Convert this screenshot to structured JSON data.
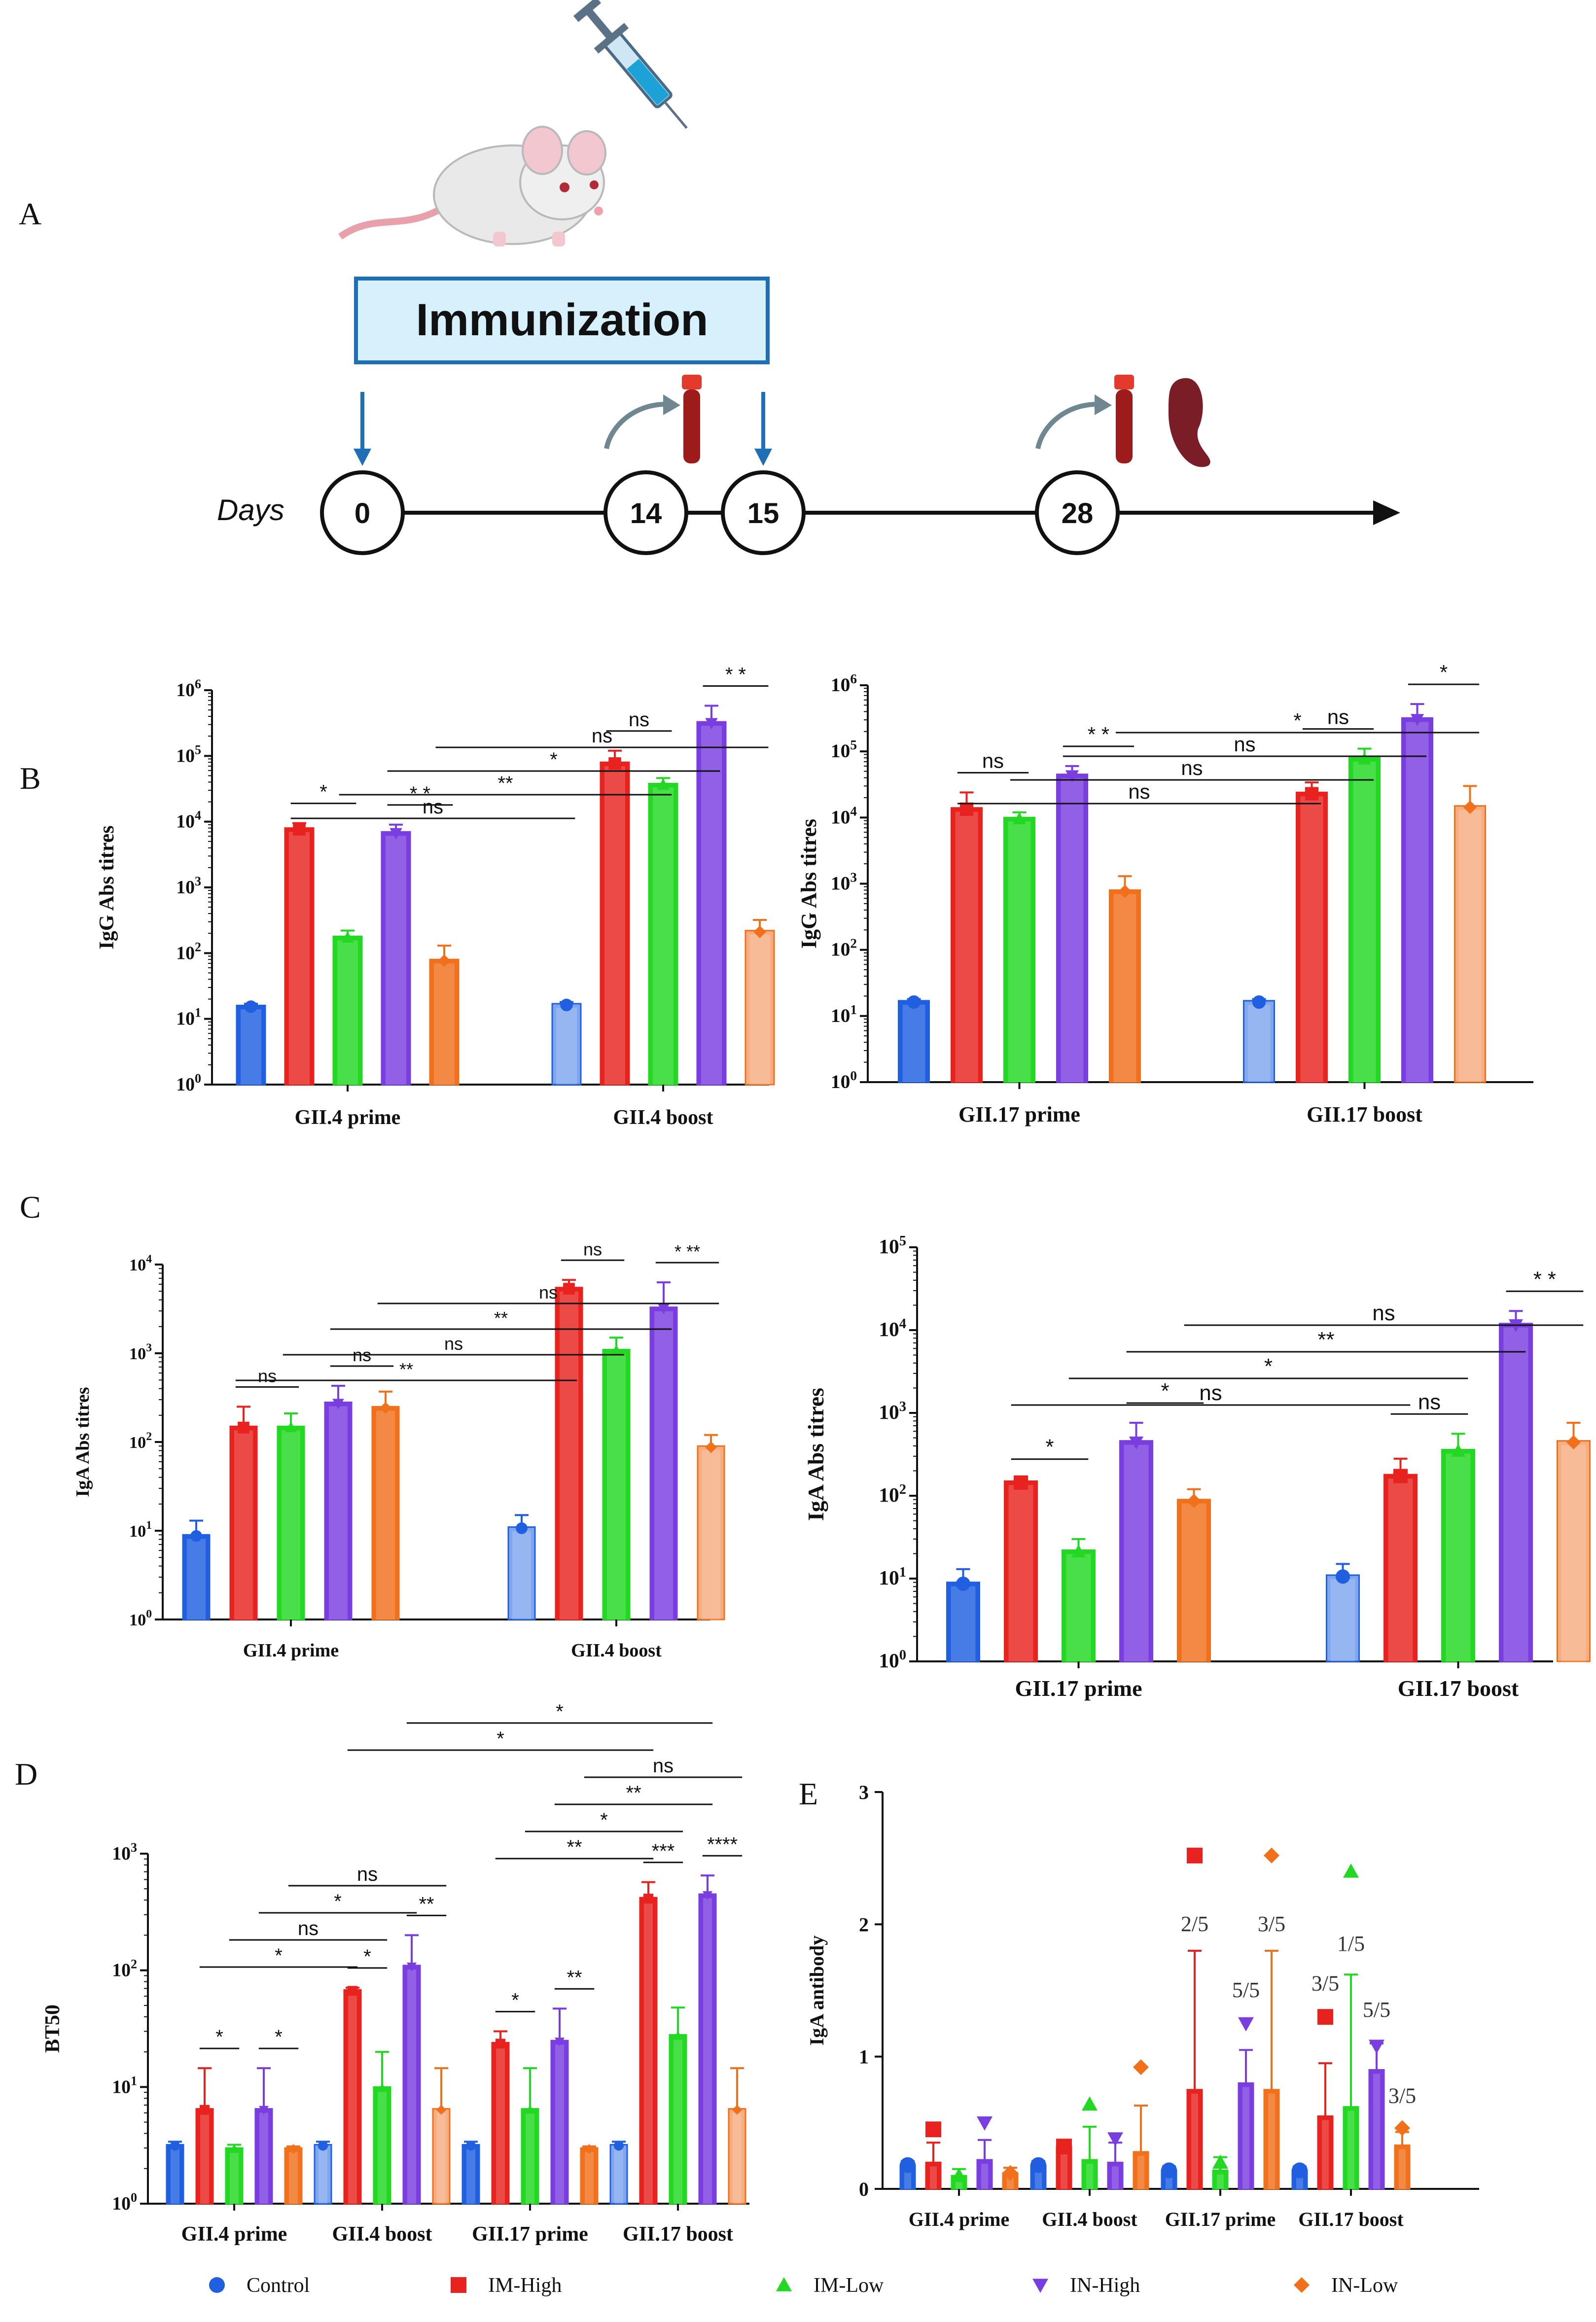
{
  "panel_labels": {
    "a": "A",
    "b": "B",
    "c": "C",
    "d": "D",
    "e": "E"
  },
  "timeline": {
    "box_label": "Immunization",
    "days_label": "Days",
    "days": [
      "0",
      "14",
      "15",
      "28"
    ]
  },
  "colors": {
    "Control": "#1f5fe0",
    "IM-High": "#e8231f",
    "IM-Low": "#22d822",
    "IN-High": "#7a3ee0",
    "IN-Low": "#f0701c",
    "Control_light": "#7fa6ef",
    "IM-High_light": "#f47f7b",
    "IM-Low_light": "#8ae98a",
    "IN-High_light": "#b59af0",
    "IN-Low_light": "#f6ad80"
  },
  "legend": {
    "items": [
      {
        "label": "Control",
        "color": "#1f5fe0",
        "marker": "circle"
      },
      {
        "label": "IM-High",
        "color": "#e8231f",
        "marker": "square"
      },
      {
        "label": "IM-Low",
        "color": "#22d822",
        "marker": "triangle-up"
      },
      {
        "label": "IN-High",
        "color": "#7a3ee0",
        "marker": "triangle-down"
      },
      {
        "label": "IN-Low",
        "color": "#f0701c",
        "marker": "diamond"
      }
    ]
  },
  "chart_data": [
    {
      "id": "B-left",
      "type": "bar",
      "scale": "log",
      "ylabel": "IgG Abs titres",
      "ylim_exp": [
        0,
        6
      ],
      "yticks": [
        {
          "b": "10",
          "e": "0"
        },
        {
          "b": "10",
          "e": "1"
        },
        {
          "b": "10",
          "e": "2"
        },
        {
          "b": "10",
          "e": "3"
        },
        {
          "b": "10",
          "e": "4"
        },
        {
          "b": "10",
          "e": "5"
        },
        {
          "b": "10",
          "e": "6"
        }
      ],
      "groups": [
        {
          "label": "GII.4 prime",
          "values": [
            16,
            8000,
            180,
            7000,
            80
          ],
          "errors": [
            1,
            1500,
            40,
            2000,
            50
          ]
        },
        {
          "label": "GII.4 boost",
          "values": [
            17,
            80000,
            38000,
            330000,
            220
          ],
          "errors": [
            1,
            40000,
            8000,
            250000,
            100
          ]
        }
      ],
      "brackets": [
        {
          "from": [
            0,
            1
          ],
          "to": [
            0,
            2
          ],
          "text": "*"
        },
        {
          "from": [
            0,
            3
          ],
          "to": [
            0,
            4
          ],
          "text": "* *"
        },
        {
          "from": [
            0,
            1
          ],
          "to": [
            1,
            0
          ],
          "text": "ns"
        },
        {
          "from": [
            1,
            1
          ],
          "to": [
            1,
            2
          ],
          "text": "ns"
        },
        {
          "from": [
            1,
            3
          ],
          "to": [
            1,
            4
          ],
          "text": "* *"
        },
        {
          "from": [
            0,
            2
          ],
          "to": [
            1,
            2
          ],
          "text": "**"
        },
        {
          "from": [
            0,
            3
          ],
          "to": [
            1,
            3
          ],
          "text": "*"
        },
        {
          "from": [
            0,
            4
          ],
          "to": [
            1,
            4
          ],
          "text": "ns"
        }
      ]
    },
    {
      "id": "B-right",
      "type": "bar",
      "scale": "log",
      "ylabel": "IgG Abs titres",
      "ylim_exp": [
        0,
        6
      ],
      "yticks": [
        {
          "b": "10",
          "e": "0"
        },
        {
          "b": "10",
          "e": "1"
        },
        {
          "b": "10",
          "e": "2"
        },
        {
          "b": "10",
          "e": "3"
        },
        {
          "b": "10",
          "e": "4"
        },
        {
          "b": "10",
          "e": "5"
        },
        {
          "b": "10",
          "e": "6"
        }
      ],
      "groups": [
        {
          "label": "GII.17 prime",
          "values": [
            17,
            14000,
            10000,
            45000,
            800
          ],
          "errors": [
            1,
            10000,
            2000,
            15000,
            500
          ]
        },
        {
          "label": "GII.17 boost",
          "values": [
            17,
            24000,
            80000,
            320000,
            15000
          ],
          "errors": [
            1,
            10000,
            30000,
            200000,
            15000
          ]
        }
      ],
      "brackets": [
        {
          "from": [
            0,
            1
          ],
          "to": [
            0,
            2
          ],
          "text": "ns"
        },
        {
          "from": [
            0,
            3
          ],
          "to": [
            0,
            4
          ],
          "text": "* *"
        },
        {
          "from": [
            1,
            1
          ],
          "to": [
            1,
            2
          ],
          "text": "ns"
        },
        {
          "from": [
            1,
            3
          ],
          "to": [
            1,
            4
          ],
          "text": "*"
        },
        {
          "from": [
            0,
            1
          ],
          "to": [
            1,
            1
          ],
          "text": "ns"
        },
        {
          "from": [
            0,
            2
          ],
          "to": [
            1,
            2
          ],
          "text": "ns"
        },
        {
          "from": [
            0,
            3
          ],
          "to": [
            1,
            3
          ],
          "text": "ns"
        },
        {
          "from": [
            0,
            4
          ],
          "to": [
            1,
            4
          ],
          "text": "*"
        }
      ]
    },
    {
      "id": "C-left",
      "type": "bar",
      "scale": "log",
      "ylabel": "IgA Abs titres",
      "ylim_exp": [
        0,
        4
      ],
      "yticks": [
        {
          "b": "10",
          "e": "0"
        },
        {
          "b": "10",
          "e": "1"
        },
        {
          "b": "10",
          "e": "2"
        },
        {
          "b": "10",
          "e": "3"
        },
        {
          "b": "10",
          "e": "4"
        }
      ],
      "groups": [
        {
          "label": "GII.4 prime",
          "values": [
            9,
            150,
            150,
            280,
            250
          ],
          "errors": [
            4,
            100,
            60,
            150,
            120
          ]
        },
        {
          "label": "GII.4 boost",
          "values": [
            11,
            5500,
            1100,
            3300,
            90
          ],
          "errors": [
            4,
            1200,
            400,
            3000,
            30
          ]
        }
      ],
      "brackets": [
        {
          "from": [
            0,
            1
          ],
          "to": [
            0,
            2
          ],
          "text": "ns"
        },
        {
          "from": [
            0,
            3
          ],
          "to": [
            0,
            4
          ],
          "text": "ns"
        },
        {
          "from": [
            1,
            1
          ],
          "to": [
            1,
            2
          ],
          "text": "ns"
        },
        {
          "from": [
            1,
            3
          ],
          "to": [
            1,
            4
          ],
          "text": "* **"
        },
        {
          "from": [
            0,
            1
          ],
          "to": [
            1,
            1
          ],
          "text": "**"
        },
        {
          "from": [
            0,
            2
          ],
          "to": [
            1,
            2
          ],
          "text": "ns"
        },
        {
          "from": [
            0,
            3
          ],
          "to": [
            1,
            3
          ],
          "text": "**"
        },
        {
          "from": [
            0,
            4
          ],
          "to": [
            1,
            4
          ],
          "text": "ns"
        }
      ]
    },
    {
      "id": "C-right",
      "type": "bar",
      "scale": "log",
      "ylabel": "IgA Abs titres",
      "ylim_exp": [
        0,
        5
      ],
      "yticks": [
        {
          "b": "10",
          "e": "0"
        },
        {
          "b": "10",
          "e": "1"
        },
        {
          "b": "10",
          "e": "2"
        },
        {
          "b": "10",
          "e": "3"
        },
        {
          "b": "10",
          "e": "4"
        },
        {
          "b": "10",
          "e": "5"
        }
      ],
      "groups": [
        {
          "label": "GII.17 prime",
          "values": [
            9,
            150,
            22,
            460,
            90
          ],
          "errors": [
            4,
            10,
            8,
            300,
            30
          ]
        },
        {
          "label": "GII.17 boost",
          "values": [
            11,
            180,
            360,
            12000,
            460
          ],
          "errors": [
            4,
            100,
            200,
            5000,
            300
          ]
        }
      ],
      "brackets": [
        {
          "from": [
            0,
            1
          ],
          "to": [
            0,
            2
          ],
          "text": "*"
        },
        {
          "from": [
            0,
            3
          ],
          "to": [
            0,
            4
          ],
          "text": "*"
        },
        {
          "from": [
            1,
            1
          ],
          "to": [
            1,
            2
          ],
          "text": "ns"
        },
        {
          "from": [
            1,
            3
          ],
          "to": [
            1,
            4
          ],
          "text": "* *"
        },
        {
          "from": [
            0,
            1
          ],
          "to": [
            1,
            1
          ],
          "text": "ns"
        },
        {
          "from": [
            0,
            2
          ],
          "to": [
            1,
            2
          ],
          "text": "*"
        },
        {
          "from": [
            0,
            3
          ],
          "to": [
            1,
            3
          ],
          "text": "**"
        },
        {
          "from": [
            0,
            4
          ],
          "to": [
            1,
            4
          ],
          "text": "ns"
        }
      ]
    },
    {
      "id": "D",
      "type": "bar",
      "scale": "log",
      "ylabel": "BT50",
      "ylim_exp": [
        0,
        3
      ],
      "yticks": [
        {
          "b": "10",
          "e": "0"
        },
        {
          "b": "10",
          "e": "1"
        },
        {
          "b": "10",
          "e": "2"
        },
        {
          "b": "10",
          "e": "3"
        }
      ],
      "groups": [
        {
          "label": "GII.4 prime",
          "values": [
            3.2,
            6.5,
            3.0,
            6.5,
            3.0
          ],
          "errors": [
            0.2,
            8,
            0.2,
            8,
            0.1
          ]
        },
        {
          "label": "GII.4 boost",
          "values": [
            3.2,
            68,
            10,
            110,
            6.5
          ],
          "errors": [
            0.2,
            3,
            10,
            90,
            8
          ]
        },
        {
          "label": "GII.17 prime",
          "values": [
            3.2,
            24,
            6.5,
            25,
            3.0
          ],
          "errors": [
            0.2,
            6,
            8,
            22,
            0.1
          ]
        },
        {
          "label": "GII.17 boost",
          "values": [
            3.2,
            420,
            28,
            450,
            6.5
          ],
          "errors": [
            0.2,
            150,
            20,
            200,
            8
          ]
        }
      ],
      "brackets": [
        {
          "from": [
            0,
            1
          ],
          "to": [
            0,
            2
          ],
          "text": "*"
        },
        {
          "from": [
            0,
            3
          ],
          "to": [
            0,
            4
          ],
          "text": "*"
        },
        {
          "from": [
            1,
            1
          ],
          "to": [
            1,
            2
          ],
          "text": "*"
        },
        {
          "from": [
            1,
            3
          ],
          "to": [
            1,
            4
          ],
          "text": "**"
        },
        {
          "from": [
            2,
            1
          ],
          "to": [
            2,
            2
          ],
          "text": "*"
        },
        {
          "from": [
            2,
            3
          ],
          "to": [
            2,
            4
          ],
          "text": "**"
        },
        {
          "from": [
            3,
            1
          ],
          "to": [
            3,
            2
          ],
          "text": "***"
        },
        {
          "from": [
            3,
            3
          ],
          "to": [
            3,
            4
          ],
          "text": "****"
        },
        {
          "from": [
            0,
            1
          ],
          "to": [
            1,
            1
          ],
          "text": "*"
        },
        {
          "from": [
            0,
            2
          ],
          "to": [
            1,
            2
          ],
          "text": "ns"
        },
        {
          "from": [
            0,
            3
          ],
          "to": [
            1,
            3
          ],
          "text": "*"
        },
        {
          "from": [
            0,
            4
          ],
          "to": [
            1,
            4
          ],
          "text": "ns"
        },
        {
          "from": [
            2,
            1
          ],
          "to": [
            3,
            1
          ],
          "text": "**"
        },
        {
          "from": [
            2,
            2
          ],
          "to": [
            3,
            2
          ],
          "text": "*"
        },
        {
          "from": [
            2,
            3
          ],
          "to": [
            3,
            3
          ],
          "text": "**"
        },
        {
          "from": [
            2,
            4
          ],
          "to": [
            3,
            4
          ],
          "text": "ns"
        },
        {
          "from": [
            1,
            1
          ],
          "to": [
            3,
            1
          ],
          "text": "*"
        },
        {
          "from": [
            1,
            3
          ],
          "to": [
            3,
            3
          ],
          "text": "*"
        }
      ]
    },
    {
      "id": "E",
      "type": "bar",
      "scale": "linear",
      "ylabel": "IgA antibody",
      "ylim": [
        0,
        3
      ],
      "yticks": [
        "0",
        "1",
        "2",
        "3"
      ],
      "groups": [
        {
          "label": "GII.4 prime",
          "values": [
            0.18,
            0.2,
            0.1,
            0.22,
            0.12
          ],
          "errors": [
            0.03,
            0.15,
            0.05,
            0.15,
            0.04
          ],
          "points": [
            0.18,
            0.45,
            0.1,
            0.5,
            0.12
          ]
        },
        {
          "label": "GII.4 boost",
          "values": [
            0.18,
            0.32,
            0.22,
            0.2,
            0.28
          ],
          "errors": [
            0.03,
            0.02,
            0.25,
            0.15,
            0.35
          ],
          "points": [
            0.18,
            0.32,
            0.64,
            0.38,
            0.92
          ]
        },
        {
          "label": "GII.17 prime",
          "values": [
            0.14,
            0.75,
            0.14,
            0.8,
            0.75
          ],
          "errors": [
            0.03,
            1.05,
            0.1,
            0.25,
            1.05
          ],
          "points": [
            0.14,
            2.52,
            0.2,
            1.25,
            2.52
          ]
        },
        {
          "label": "GII.17 boost",
          "values": [
            0.14,
            0.55,
            0.62,
            0.9,
            0.33
          ],
          "errors": [
            0.03,
            0.4,
            1.0,
            0.2,
            0.1
          ],
          "points": [
            0.14,
            1.3,
            2.4,
            1.08,
            0.46
          ]
        }
      ],
      "annotations": [
        {
          "g": 2,
          "s": 1,
          "text": "2/5",
          "y": 1.95
        },
        {
          "g": 2,
          "s": 3,
          "text": "5/5",
          "y": 1.45
        },
        {
          "g": 2,
          "s": 4,
          "text": "3/5",
          "y": 1.95
        },
        {
          "g": 3,
          "s": 1,
          "text": "3/5",
          "y": 1.5
        },
        {
          "g": 3,
          "s": 2,
          "text": "1/5",
          "y": 1.8
        },
        {
          "g": 3,
          "s": 3,
          "text": "5/5",
          "y": 1.3
        },
        {
          "g": 3,
          "s": 4,
          "text": "3/5",
          "y": 0.65
        }
      ]
    }
  ]
}
